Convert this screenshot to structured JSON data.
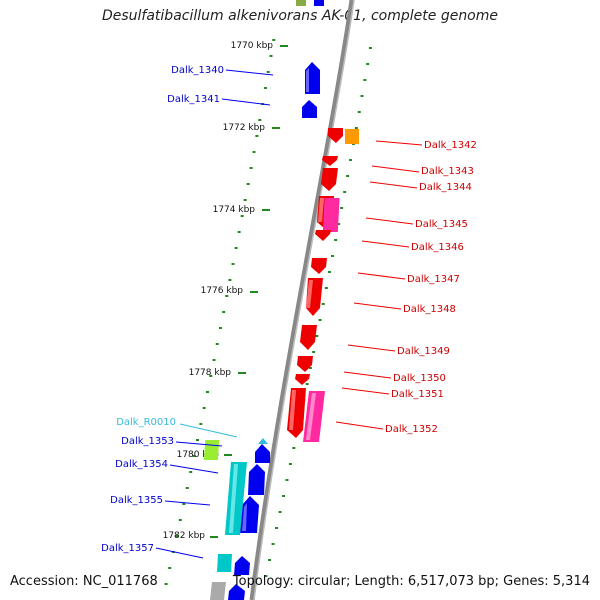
{
  "header": {
    "title": "Desulfatibacillum alkenivorans AK-01, complete genome"
  },
  "footer": {
    "accession": "Accession: NC_011768",
    "topology": "Topology: circular; Length: 6,517,073 bp; Genes: 5,314"
  },
  "colors": {
    "forward": "#0000ee",
    "reverse": "#ee0000",
    "pseudo_pink": "#ff2aa0",
    "orange": "#ff9900",
    "teal": "#00c8c8",
    "lime": "#99ee33",
    "rna_label": "#33bbdd",
    "tick": "#228822",
    "backbone": "#888888"
  },
  "kbp_ticks": [
    {
      "label": "1770 kbp",
      "kbp": 1770
    },
    {
      "label": "1772 kbp",
      "kbp": 1772
    },
    {
      "label": "1774 kbp",
      "kbp": 1774
    },
    {
      "label": "1776 kbp",
      "kbp": 1776
    },
    {
      "label": "1778 kbp",
      "kbp": 1778
    },
    {
      "label": "1780 kbp",
      "kbp": 1780
    },
    {
      "label": "1782 kbp",
      "kbp": 1782
    }
  ],
  "genes_left": [
    {
      "label": "Dalk_1340",
      "color": "blue"
    },
    {
      "label": "Dalk_1341",
      "color": "blue"
    },
    {
      "label": "Dalk_R0010",
      "color": "cyan"
    },
    {
      "label": "Dalk_1353",
      "color": "blue"
    },
    {
      "label": "Dalk_1354",
      "color": "blue"
    },
    {
      "label": "Dalk_1355",
      "color": "blue"
    },
    {
      "label": "Dalk_1357",
      "color": "blue"
    }
  ],
  "genes_right": [
    {
      "label": "Dalk_1342"
    },
    {
      "label": "Dalk_1343"
    },
    {
      "label": "Dalk_1344"
    },
    {
      "label": "Dalk_1345"
    },
    {
      "label": "Dalk_1346"
    },
    {
      "label": "Dalk_1347"
    },
    {
      "label": "Dalk_1348"
    },
    {
      "label": "Dalk_1349"
    },
    {
      "label": "Dalk_1350"
    },
    {
      "label": "Dalk_1351"
    },
    {
      "label": "Dalk_1352"
    }
  ]
}
